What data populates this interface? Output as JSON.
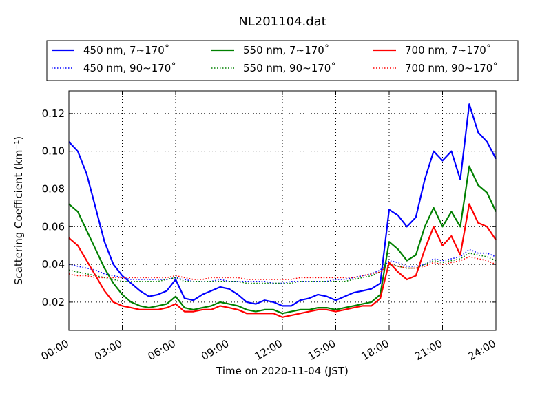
{
  "chart_data": {
    "type": "line",
    "title": "NL201104.dat",
    "xlabel": "Time on 2020-11-04 (JST)",
    "ylabel": "Scattering Coefficient (km⁻¹)",
    "xlim": [
      0,
      24
    ],
    "ylim": [
      0.005,
      0.132
    ],
    "grid": true,
    "legend_position": "top",
    "x_tick_labels": [
      "00:00",
      "03:00",
      "06:00",
      "09:00",
      "12:00",
      "15:00",
      "18:00",
      "21:00",
      "24:00"
    ],
    "y_ticks": [
      0.02,
      0.04,
      0.06,
      0.08,
      0.1,
      0.12
    ],
    "y_tick_labels": [
      "0.02",
      "0.04",
      "0.06",
      "0.08",
      "0.10",
      "0.12"
    ],
    "x": [
      0,
      0.5,
      1,
      1.5,
      2,
      2.5,
      3,
      3.5,
      4,
      4.5,
      5,
      5.5,
      6,
      6.5,
      7,
      7.5,
      8,
      8.5,
      9,
      9.5,
      10,
      10.5,
      11,
      11.5,
      12,
      12.5,
      13,
      13.5,
      14,
      14.5,
      15,
      15.5,
      16,
      16.5,
      17,
      17.5,
      18,
      18.5,
      19,
      19.5,
      20,
      20.5,
      21,
      21.5,
      22,
      22.5,
      23,
      23.5,
      24
    ],
    "series": [
      {
        "name": "450 nm, 7∼170˚",
        "color": "#0000ff",
        "style": "solid",
        "values": [
          0.105,
          0.1,
          0.088,
          0.07,
          0.052,
          0.04,
          0.034,
          0.03,
          0.026,
          0.023,
          0.024,
          0.026,
          0.032,
          0.022,
          0.021,
          0.024,
          0.026,
          0.028,
          0.027,
          0.024,
          0.02,
          0.019,
          0.021,
          0.02,
          0.018,
          0.018,
          0.021,
          0.022,
          0.024,
          0.023,
          0.021,
          0.023,
          0.025,
          0.026,
          0.027,
          0.03,
          0.069,
          0.066,
          0.06,
          0.065,
          0.085,
          0.1,
          0.095,
          0.1,
          0.085,
          0.125,
          0.11,
          0.105,
          0.096
        ]
      },
      {
        "name": "450 nm, 90∼170˚",
        "color": "#0000ff",
        "style": "dotted",
        "values": [
          0.04,
          0.039,
          0.038,
          0.037,
          0.035,
          0.034,
          0.033,
          0.032,
          0.032,
          0.032,
          0.032,
          0.032,
          0.033,
          0.032,
          0.031,
          0.031,
          0.031,
          0.032,
          0.031,
          0.031,
          0.031,
          0.031,
          0.031,
          0.03,
          0.03,
          0.031,
          0.031,
          0.031,
          0.031,
          0.031,
          0.032,
          0.032,
          0.033,
          0.034,
          0.035,
          0.037,
          0.042,
          0.041,
          0.039,
          0.039,
          0.04,
          0.043,
          0.042,
          0.043,
          0.044,
          0.048,
          0.046,
          0.046,
          0.044
        ]
      },
      {
        "name": "550 nm, 7∼170˚",
        "color": "#008000",
        "style": "solid",
        "values": [
          0.072,
          0.068,
          0.058,
          0.048,
          0.038,
          0.03,
          0.024,
          0.02,
          0.018,
          0.017,
          0.018,
          0.019,
          0.023,
          0.017,
          0.016,
          0.017,
          0.018,
          0.02,
          0.019,
          0.018,
          0.016,
          0.015,
          0.016,
          0.016,
          0.014,
          0.015,
          0.016,
          0.016,
          0.017,
          0.017,
          0.016,
          0.017,
          0.018,
          0.019,
          0.02,
          0.024,
          0.052,
          0.048,
          0.042,
          0.045,
          0.06,
          0.07,
          0.06,
          0.068,
          0.06,
          0.092,
          0.082,
          0.078,
          0.068
        ]
      },
      {
        "name": "550 nm, 90∼170˚",
        "color": "#008000",
        "style": "dotted",
        "values": [
          0.037,
          0.036,
          0.035,
          0.034,
          0.033,
          0.032,
          0.031,
          0.031,
          0.031,
          0.031,
          0.031,
          0.032,
          0.033,
          0.031,
          0.031,
          0.031,
          0.031,
          0.031,
          0.031,
          0.031,
          0.03,
          0.03,
          0.03,
          0.03,
          0.03,
          0.03,
          0.031,
          0.031,
          0.031,
          0.031,
          0.031,
          0.031,
          0.032,
          0.033,
          0.034,
          0.036,
          0.04,
          0.039,
          0.038,
          0.038,
          0.04,
          0.042,
          0.041,
          0.042,
          0.043,
          0.046,
          0.045,
          0.044,
          0.042
        ]
      },
      {
        "name": "700 nm, 7∼170˚",
        "color": "#ff0000",
        "style": "solid",
        "values": [
          0.054,
          0.05,
          0.042,
          0.034,
          0.026,
          0.02,
          0.018,
          0.017,
          0.016,
          0.016,
          0.016,
          0.017,
          0.019,
          0.015,
          0.015,
          0.016,
          0.016,
          0.018,
          0.017,
          0.016,
          0.014,
          0.014,
          0.014,
          0.014,
          0.012,
          0.013,
          0.014,
          0.015,
          0.016,
          0.016,
          0.015,
          0.016,
          0.017,
          0.018,
          0.018,
          0.022,
          0.041,
          0.036,
          0.032,
          0.034,
          0.048,
          0.06,
          0.05,
          0.055,
          0.045,
          0.072,
          0.062,
          0.06,
          0.053
        ]
      },
      {
        "name": "700 nm, 90∼170˚",
        "color": "#ff0000",
        "style": "dotted",
        "values": [
          0.035,
          0.034,
          0.034,
          0.033,
          0.033,
          0.033,
          0.033,
          0.033,
          0.033,
          0.033,
          0.033,
          0.033,
          0.034,
          0.033,
          0.032,
          0.032,
          0.033,
          0.033,
          0.033,
          0.033,
          0.032,
          0.032,
          0.032,
          0.032,
          0.032,
          0.032,
          0.033,
          0.033,
          0.033,
          0.033,
          0.033,
          0.033,
          0.033,
          0.034,
          0.035,
          0.036,
          0.04,
          0.039,
          0.038,
          0.038,
          0.039,
          0.041,
          0.04,
          0.041,
          0.042,
          0.044,
          0.043,
          0.042,
          0.04
        ]
      }
    ]
  }
}
